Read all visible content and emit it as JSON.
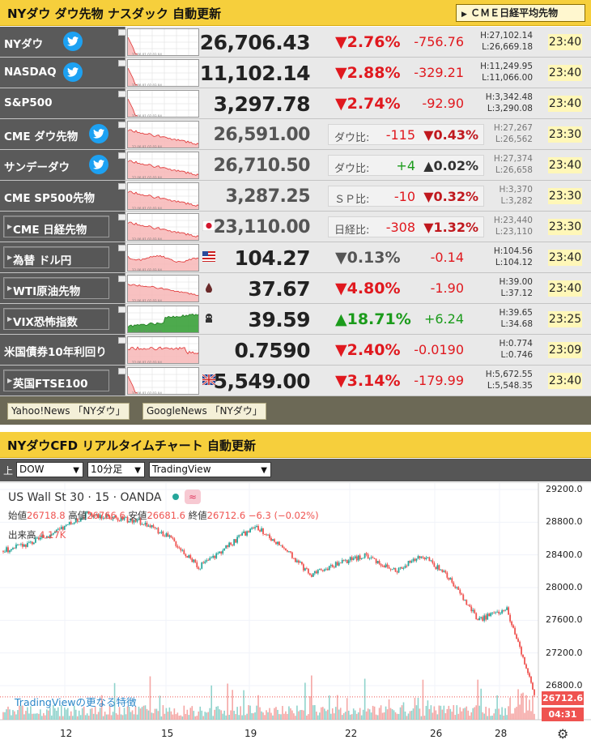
{
  "header": {
    "title": "NYダウ ダウ先物 ナスダック 自動更新",
    "cme_button": "ＣＭＥ日経平均先物"
  },
  "colors": {
    "header_bg": "#f6cf3c",
    "name_bg": "#5a5a5a",
    "up": "#1b9b1b",
    "down": "#e0181e",
    "twitter": "#1da1f2"
  },
  "markets": [
    {
      "name": "NYダウ",
      "twitter": true,
      "price": "26,706.43",
      "pct": "▼2.76%",
      "change": "-756.76",
      "high": "H:27,102.14",
      "low": "L:26,669.18",
      "time": "23:40",
      "dir": "down",
      "spark": "down"
    },
    {
      "name": "NASDAQ",
      "twitter": true,
      "price": "11,102.14",
      "pct": "▼2.88%",
      "change": "-329.21",
      "high": "H:11,249.95",
      "low": "L:11,066.00",
      "time": "23:40",
      "dir": "down",
      "spark": "down"
    },
    {
      "name": "S&P500",
      "twitter": false,
      "price": "3,297.78",
      "pct": "▼2.74%",
      "change": "-92.90",
      "high": "H:3,342.48",
      "low": "L:3,290.08",
      "time": "23:40",
      "dir": "down",
      "spark": "down"
    },
    {
      "name": "CME ダウ先物",
      "twitter": true,
      "future": true,
      "price": "26,591.00",
      "diff_label": "ダウ比:",
      "diff_val": "-115",
      "diff_pct": "▼0.43%",
      "high": "H:27,267",
      "low": "L:26,562",
      "time": "23:30",
      "dir": "down",
      "spark": "fut"
    },
    {
      "name": "サンデーダウ",
      "twitter": true,
      "future": true,
      "price": "26,710.50",
      "diff_label": "ダウ比:",
      "diff_val": "+4",
      "diff_pct": "▲0.02%",
      "high": "H:27,374",
      "low": "L:26,658",
      "time": "23:40",
      "dir": "up",
      "spark": "fut"
    },
    {
      "name": "CME SP500先物",
      "twitter": false,
      "future": true,
      "price": "3,287.25",
      "diff_label": "ＳＰ比:",
      "diff_val": "-10",
      "diff_pct": "▼0.32%",
      "high": "H:3,370",
      "low": "L:3,282",
      "time": "23:30",
      "dir": "down",
      "spark": "fut"
    },
    {
      "name": "CME 日経先物",
      "nav": true,
      "flag": "jp",
      "future": true,
      "price": "23,110.00",
      "diff_label": "日経比:",
      "diff_val": "-308",
      "diff_pct": "▼1.32%",
      "high": "H:23,440",
      "low": "L:23,110",
      "time": "23:30",
      "dir": "down",
      "spark": "fut"
    },
    {
      "name": "為替 ドル円",
      "nav": true,
      "flag": "us",
      "price": "104.27",
      "pct": "▼0.13%",
      "change": "-0.14",
      "high": "H:104.56",
      "low": "L:104.12",
      "time": "23:40",
      "dir": "down",
      "pct_gray": true,
      "spark": "fx"
    },
    {
      "name": "WTI原油先物",
      "nav": true,
      "flag": "oil",
      "price": "37.67",
      "pct": "▼4.80%",
      "change": "-1.90",
      "high": "H:39.00",
      "low": "L:37.12",
      "time": "23:40",
      "dir": "down",
      "spark": "oil"
    },
    {
      "name": "VIX恐怖指数",
      "nav": true,
      "flag": "vix",
      "price": "39.59",
      "pct": "▲18.71%",
      "change": "+6.24",
      "high": "H:39.65",
      "low": "L:34.68",
      "time": "23:25",
      "dir": "up",
      "spark": "vix"
    },
    {
      "name": "米国債券10年利回り",
      "price": "0.7590",
      "pct": "▼2.40%",
      "change": "-0.0190",
      "high": "H:0.774",
      "low": "L:0.746",
      "time": "23:09",
      "dir": "down",
      "spark": "bond"
    },
    {
      "name": "英国FTSE100",
      "nav": true,
      "flag": "uk",
      "price": "5,549.00",
      "pct": "▼3.14%",
      "change": "-179.99",
      "high": "H:5,672.55",
      "low": "L:5,548.35",
      "time": "23:40",
      "dir": "down",
      "spark": "down"
    }
  ],
  "news": {
    "yahoo": "Yahoo!News 「NYダウ」",
    "google": "GoogleNews 「NYダウ」"
  },
  "section2": {
    "title": "NYダウCFD リアルタイムチャート 自動更新",
    "up_label": "上",
    "select_symbol": "DOW",
    "select_interval": "10分足",
    "select_provider": "TradingView"
  },
  "chart": {
    "symbol": "US Wall St 30 · 15 · OANDA",
    "badge_icon": "≈",
    "ohlc": {
      "open_label": "始値",
      "open": "26718.8",
      "high_label": "高値",
      "high": "26766.6",
      "low_label": "安値",
      "low": "26681.6",
      "close_label": "終値",
      "close": "26712.6",
      "change": "−6.3 (−0.02%)"
    },
    "volume_label": "出来高",
    "volume": "4.17K",
    "promo_link": "TradingViewの更なる特徴",
    "last_price_tag": "26712.6",
    "countdown_tag": "04:31",
    "gear_icon": "gear-icon"
  },
  "chart_data": {
    "type": "line",
    "title": "US Wall St 30 · 15 · OANDA",
    "xlabel": "",
    "ylabel": "",
    "ylim": [
      26800,
      29200
    ],
    "x_ticks": [
      "12",
      "15",
      "19",
      "22",
      "26",
      "28"
    ],
    "y_ticks": [
      "29200.0",
      "28800.0",
      "28400.0",
      "28000.0",
      "27600.0",
      "27200.0",
      "26800.0"
    ],
    "series": [
      {
        "x": [
          "10",
          "11",
          "12",
          "13",
          "14",
          "15",
          "16",
          "17",
          "18",
          "19",
          "20",
          "21",
          "22",
          "23",
          "24",
          "25",
          "26",
          "27",
          "28",
          "29"
        ],
        "values": [
          28450,
          28550,
          28700,
          28900,
          28850,
          28800,
          28600,
          28250,
          28500,
          28750,
          28500,
          28150,
          28300,
          28400,
          28200,
          28400,
          28100,
          27600,
          27750,
          26710
        ]
      }
    ],
    "grid": true,
    "legend": "none"
  }
}
